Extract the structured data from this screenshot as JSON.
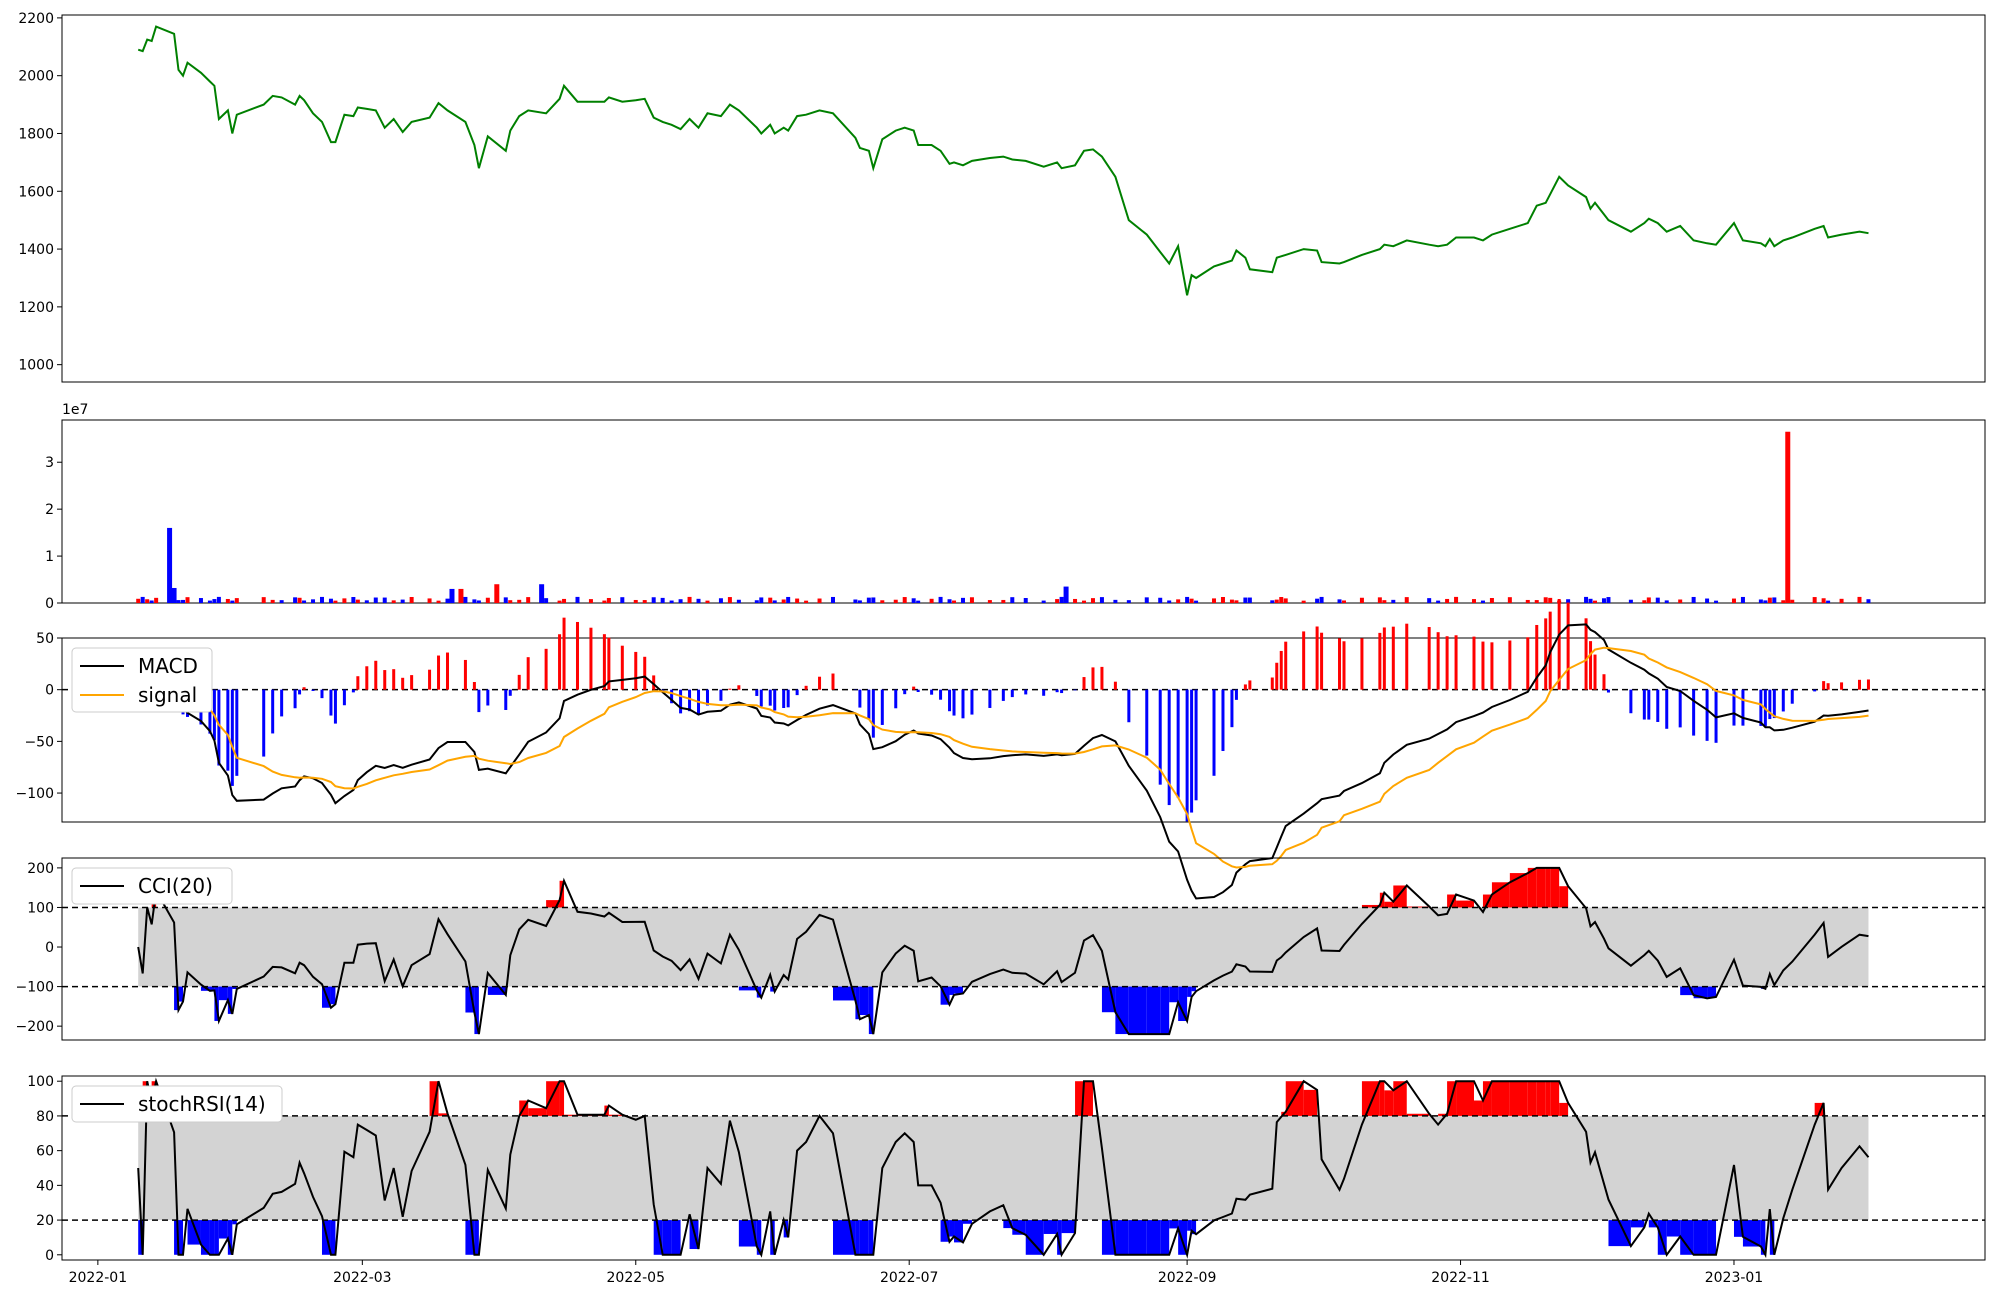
{
  "chart_data": [
    {
      "type": "line",
      "panel": "price",
      "ylim": [
        940,
        2210
      ],
      "yticks": [
        1000,
        1200,
        1400,
        1600,
        1800,
        2000,
        2200
      ],
      "line_color": "#008000",
      "points": [
        [
          "2022-01-10",
          2090
        ],
        [
          "2022-01-11",
          2085
        ],
        [
          "2022-01-12",
          2125
        ],
        [
          "2022-01-13",
          2120
        ],
        [
          "2022-01-14",
          2170
        ],
        [
          "2022-01-18",
          2145
        ],
        [
          "2022-01-19",
          2020
        ],
        [
          "2022-01-20",
          2000
        ],
        [
          "2022-01-21",
          2045
        ],
        [
          "2022-01-24",
          2010
        ],
        [
          "2022-01-26",
          1980
        ],
        [
          "2022-01-27",
          1965
        ],
        [
          "2022-01-28",
          1850
        ],
        [
          "2022-01-30",
          1880
        ],
        [
          "2022-01-31",
          1800
        ],
        [
          "2022-02-01",
          1865
        ],
        [
          "2022-02-07",
          1900
        ],
        [
          "2022-02-09",
          1930
        ],
        [
          "2022-02-11",
          1925
        ],
        [
          "2022-02-14",
          1900
        ],
        [
          "2022-02-15",
          1930
        ],
        [
          "2022-02-16",
          1915
        ],
        [
          "2022-02-18",
          1870
        ],
        [
          "2022-02-20",
          1840
        ],
        [
          "2022-02-22",
          1770
        ],
        [
          "2022-02-23",
          1770
        ],
        [
          "2022-02-25",
          1865
        ],
        [
          "2022-02-27",
          1860
        ],
        [
          "2022-02-28",
          1890
        ],
        [
          "2022-03-02",
          1885
        ],
        [
          "2022-03-04",
          1880
        ],
        [
          "2022-03-06",
          1820
        ],
        [
          "2022-03-08",
          1850
        ],
        [
          "2022-03-10",
          1805
        ],
        [
          "2022-03-12",
          1840
        ],
        [
          "2022-03-16",
          1855
        ],
        [
          "2022-03-18",
          1905
        ],
        [
          "2022-03-20",
          1880
        ],
        [
          "2022-03-24",
          1840
        ],
        [
          "2022-03-26",
          1760
        ],
        [
          "2022-03-27",
          1680
        ],
        [
          "2022-03-29",
          1790
        ],
        [
          "2022-04-02",
          1740
        ],
        [
          "2022-04-03",
          1810
        ],
        [
          "2022-04-05",
          1860
        ],
        [
          "2022-04-07",
          1880
        ],
        [
          "2022-04-11",
          1870
        ],
        [
          "2022-04-14",
          1920
        ],
        [
          "2022-04-15",
          1965
        ],
        [
          "2022-04-18",
          1910
        ],
        [
          "2022-04-21",
          1910
        ],
        [
          "2022-04-24",
          1910
        ],
        [
          "2022-04-25",
          1925
        ],
        [
          "2022-04-28",
          1910
        ],
        [
          "2022-05-01",
          1915
        ],
        [
          "2022-05-03",
          1920
        ],
        [
          "2022-05-05",
          1855
        ],
        [
          "2022-05-07",
          1840
        ],
        [
          "2022-05-09",
          1830
        ],
        [
          "2022-05-11",
          1815
        ],
        [
          "2022-05-13",
          1850
        ],
        [
          "2022-05-15",
          1820
        ],
        [
          "2022-05-17",
          1870
        ],
        [
          "2022-05-20",
          1860
        ],
        [
          "2022-05-22",
          1900
        ],
        [
          "2022-05-24",
          1880
        ],
        [
          "2022-05-28",
          1820
        ],
        [
          "2022-05-29",
          1800
        ],
        [
          "2022-05-31",
          1830
        ],
        [
          "2022-06-01",
          1800
        ],
        [
          "2022-06-03",
          1820
        ],
        [
          "2022-06-04",
          1810
        ],
        [
          "2022-06-06",
          1860
        ],
        [
          "2022-06-08",
          1865
        ],
        [
          "2022-06-11",
          1880
        ],
        [
          "2022-06-14",
          1870
        ],
        [
          "2022-06-19",
          1785
        ],
        [
          "2022-06-20",
          1750
        ],
        [
          "2022-06-22",
          1740
        ],
        [
          "2022-06-23",
          1680
        ],
        [
          "2022-06-25",
          1780
        ],
        [
          "2022-06-28",
          1810
        ],
        [
          "2022-06-30",
          1820
        ],
        [
          "2022-07-02",
          1810
        ],
        [
          "2022-07-03",
          1760
        ],
        [
          "2022-07-06",
          1760
        ],
        [
          "2022-07-08",
          1740
        ],
        [
          "2022-07-10",
          1695
        ],
        [
          "2022-07-11",
          1700
        ],
        [
          "2022-07-13",
          1690
        ],
        [
          "2022-07-15",
          1705
        ],
        [
          "2022-07-19",
          1715
        ],
        [
          "2022-07-22",
          1720
        ],
        [
          "2022-07-24",
          1710
        ],
        [
          "2022-07-27",
          1705
        ],
        [
          "2022-07-31",
          1685
        ],
        [
          "2022-08-03",
          1700
        ],
        [
          "2022-08-04",
          1680
        ],
        [
          "2022-08-07",
          1690
        ],
        [
          "2022-08-09",
          1740
        ],
        [
          "2022-08-11",
          1745
        ],
        [
          "2022-08-13",
          1720
        ],
        [
          "2022-08-16",
          1650
        ],
        [
          "2022-08-19",
          1500
        ],
        [
          "2022-08-23",
          1450
        ],
        [
          "2022-08-26",
          1390
        ],
        [
          "2022-08-28",
          1350
        ],
        [
          "2022-08-30",
          1410
        ],
        [
          "2022-09-02",
          1310
        ],
        [
          "2022-09-01",
          1240
        ],
        [
          "2022-09-03",
          1300
        ],
        [
          "2022-09-07",
          1340
        ],
        [
          "2022-09-09",
          1350
        ],
        [
          "2022-09-11",
          1360
        ],
        [
          "2022-09-12",
          1395
        ],
        [
          "2022-09-14",
          1370
        ],
        [
          "2022-09-15",
          1330
        ],
        [
          "2022-09-20",
          1320
        ],
        [
          "2022-09-21",
          1370
        ],
        [
          "2022-09-22",
          1375
        ],
        [
          "2022-09-23",
          1380
        ],
        [
          "2022-09-27",
          1400
        ],
        [
          "2022-09-30",
          1395
        ],
        [
          "2022-10-01",
          1355
        ],
        [
          "2022-10-05",
          1350
        ],
        [
          "2022-10-06",
          1355
        ],
        [
          "2022-10-10",
          1380
        ],
        [
          "2022-10-14",
          1400
        ],
        [
          "2022-10-15",
          1415
        ],
        [
          "2022-10-17",
          1410
        ],
        [
          "2022-10-20",
          1430
        ],
        [
          "2022-10-25",
          1415
        ],
        [
          "2022-10-27",
          1410
        ],
        [
          "2022-10-29",
          1415
        ],
        [
          "2022-10-31",
          1440
        ],
        [
          "2022-11-04",
          1440
        ],
        [
          "2022-11-06",
          1430
        ],
        [
          "2022-11-08",
          1450
        ],
        [
          "2022-11-12",
          1470
        ],
        [
          "2022-11-16",
          1490
        ],
        [
          "2022-11-18",
          1550
        ],
        [
          "2022-11-20",
          1560
        ],
        [
          "2022-11-21",
          1590
        ],
        [
          "2022-11-23",
          1650
        ],
        [
          "2022-11-25",
          1620
        ],
        [
          "2022-11-29",
          1580
        ],
        [
          "2022-11-30",
          1540
        ],
        [
          "2022-12-01",
          1560
        ],
        [
          "2022-12-03",
          1520
        ],
        [
          "2022-12-04",
          1500
        ],
        [
          "2022-12-09",
          1460
        ],
        [
          "2022-12-12",
          1490
        ],
        [
          "2022-12-13",
          1505
        ],
        [
          "2022-12-15",
          1490
        ],
        [
          "2022-12-17",
          1460
        ],
        [
          "2022-12-20",
          1480
        ],
        [
          "2022-12-23",
          1430
        ],
        [
          "2022-12-26",
          1420
        ],
        [
          "2022-12-28",
          1415
        ],
        [
          "2023-01-01",
          1490
        ],
        [
          "2023-01-03",
          1430
        ],
        [
          "2023-01-07",
          1420
        ],
        [
          "2023-01-08",
          1410
        ],
        [
          "2023-01-09",
          1435
        ],
        [
          "2023-01-10",
          1410
        ],
        [
          "2023-01-12",
          1430
        ],
        [
          "2023-01-14",
          1440
        ],
        [
          "2023-01-19",
          1470
        ],
        [
          "2023-01-21",
          1480
        ],
        [
          "2023-01-22",
          1440
        ],
        [
          "2023-01-25",
          1450
        ],
        [
          "2023-01-29",
          1460
        ],
        [
          "2023-01-31",
          1455
        ]
      ]
    },
    {
      "type": "bar",
      "panel": "volume",
      "scale_label": "1e7",
      "ylim": [
        0,
        3.9
      ],
      "yticks": [
        0,
        1,
        2,
        3
      ],
      "up_color": "#ff0000",
      "down_color": "#0000ff",
      "big_bars": [
        {
          "date": "2022-01-17",
          "value": 1.6,
          "dir": "down"
        },
        {
          "date": "2022-01-18",
          "value": 0.32,
          "dir": "down"
        },
        {
          "date": "2022-03-21",
          "value": 0.3,
          "dir": "down"
        },
        {
          "date": "2022-03-23",
          "value": 0.3,
          "dir": "up"
        },
        {
          "date": "2022-03-31",
          "value": 0.4,
          "dir": "up"
        },
        {
          "date": "2022-04-10",
          "value": 0.4,
          "dir": "down"
        },
        {
          "date": "2022-08-05",
          "value": 0.35,
          "dir": "down"
        },
        {
          "date": "2023-01-13",
          "value": 3.65,
          "dir": "up"
        }
      ]
    },
    {
      "type": "line",
      "panel": "macd",
      "ylim": [
        -128,
        50
      ],
      "yticks": [
        -100,
        -50,
        0,
        50
      ],
      "series": [
        {
          "name": "MACD",
          "color": "#000000"
        },
        {
          "name": "signal",
          "color": "#ffa500"
        }
      ],
      "hist_up_color": "#ff0000",
      "hist_down_color": "#0000ff",
      "reference_line": 0
    },
    {
      "type": "line",
      "panel": "cci",
      "ylim": [
        -235,
        225
      ],
      "yticks": [
        -200,
        -100,
        0,
        100,
        200
      ],
      "band": [
        -100,
        100
      ],
      "series": [
        {
          "name": "CCI(20)",
          "color": "#000000"
        }
      ],
      "over_color": "#ff0000",
      "under_color": "#0000ff",
      "band_fill": "#d3d3d3"
    },
    {
      "type": "line",
      "panel": "stochrsi",
      "ylim": [
        -3,
        103
      ],
      "yticks": [
        0,
        20,
        40,
        60,
        80,
        100
      ],
      "band": [
        20,
        80
      ],
      "series": [
        {
          "name": "stochRSI(14)",
          "color": "#000000"
        }
      ],
      "over_color": "#ff0000",
      "under_color": "#0000ff",
      "band_fill": "#d3d3d3",
      "xticks": [
        "2022-01",
        "2022-03",
        "2022-05",
        "2022-07",
        "2022-09",
        "2022-11",
        "2023-01"
      ]
    }
  ]
}
